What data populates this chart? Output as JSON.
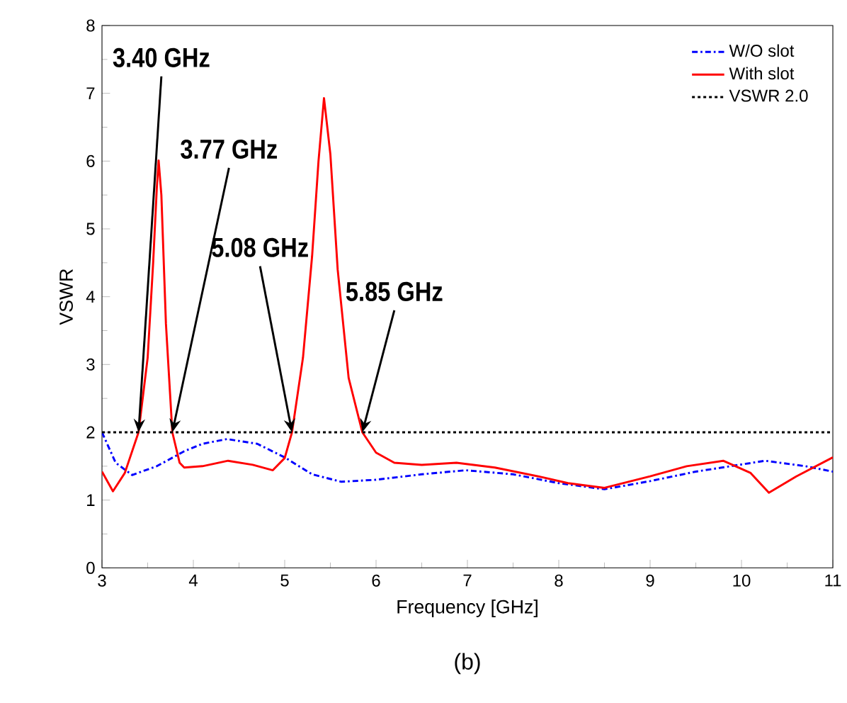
{
  "chart_data": {
    "type": "line",
    "xlabel": "Frequency [GHz]",
    "ylabel": "VSWR",
    "x": [
      3.0,
      3.12,
      3.25,
      3.4,
      3.5,
      3.56,
      3.6,
      3.62,
      3.65,
      3.7,
      3.77,
      3.85,
      3.9,
      4.1,
      4.38,
      4.65,
      4.87,
      5.0,
      5.08,
      5.2,
      5.3,
      5.37,
      5.43,
      5.5,
      5.58,
      5.7,
      5.85,
      6.0,
      6.2,
      6.5,
      6.88,
      7.3,
      7.81,
      8.1,
      8.5,
      9.0,
      9.4,
      9.8,
      10.1,
      10.3,
      10.6,
      11.0
    ],
    "series": [
      {
        "name": "W/O slot",
        "color": "#0000ff",
        "line_style": "dashed",
        "x": [
          3.0,
          3.15,
          3.33,
          3.6,
          3.9,
          4.1,
          4.37,
          4.7,
          5.0,
          5.3,
          5.62,
          6.0,
          6.5,
          6.98,
          7.5,
          8.0,
          8.5,
          9.0,
          9.5,
          10.26,
          10.7,
          11.0
        ],
        "values": [
          2.0,
          1.55,
          1.37,
          1.5,
          1.72,
          1.83,
          1.9,
          1.83,
          1.63,
          1.38,
          1.27,
          1.3,
          1.38,
          1.44,
          1.38,
          1.25,
          1.16,
          1.28,
          1.42,
          1.58,
          1.5,
          1.42
        ]
      },
      {
        "name": "With slot",
        "color": "#ff0000",
        "line_style": "solid",
        "values": [
          1.42,
          1.13,
          1.4,
          2.0,
          3.1,
          4.5,
          5.6,
          6.01,
          5.5,
          3.6,
          2.0,
          1.55,
          1.48,
          1.5,
          1.58,
          1.52,
          1.44,
          1.62,
          2.0,
          3.1,
          4.6,
          6.0,
          6.93,
          6.1,
          4.4,
          2.8,
          2.0,
          1.7,
          1.55,
          1.52,
          1.55,
          1.48,
          1.34,
          1.25,
          1.18,
          1.35,
          1.5,
          1.58,
          1.4,
          1.11,
          1.35,
          1.63
        ]
      }
    ],
    "xlim": [
      3,
      11
    ],
    "ylim": [
      0,
      8
    ],
    "xticks": [
      3,
      4,
      5,
      6,
      7,
      8,
      9,
      10,
      11
    ],
    "yticks": [
      0,
      1,
      2,
      3,
      4,
      5,
      6,
      7,
      8
    ],
    "ref_lines": [
      {
        "axis": "y",
        "value": 2.0,
        "label": "VSWR 2.0",
        "color": "#000000",
        "line_style": "dotted"
      }
    ],
    "legend": "top right",
    "grid": false,
    "marker": "none",
    "annotations": [
      {
        "text": "3.40 GHz",
        "x": 3.4,
        "y": 2.0
      },
      {
        "text": "3.77 GHz",
        "x": 3.77,
        "y": 2.0
      },
      {
        "text": "5.08 GHz",
        "x": 5.08,
        "y": 2.0
      },
      {
        "text": "5.85 GHz",
        "x": 5.85,
        "y": 2.0
      },
      "(b)"
    ]
  }
}
